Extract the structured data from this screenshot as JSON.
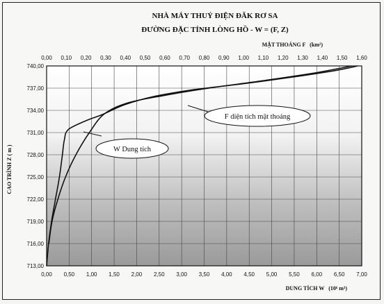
{
  "header": {
    "title": "NHÀ MÁY THUỶ ĐIỆN ĐĂK RƠ SA",
    "subtitle": "ĐƯỜNG ĐẶC TÍNH LÒNG HỒ - W = (F, Z)"
  },
  "chart_data": {
    "type": "line",
    "title": "NHÀ MÁY THUỶ ĐIỆN ĐĂK RƠ SA",
    "subtitle": "ĐƯỜNG ĐẶC TÍNH LÒNG HỒ - W = (F, Z)",
    "ylabel": "CAO TRÌNH Z ( m )",
    "x_bottom": {
      "label": "DUNG TÍCH W",
      "unit": "(10⁶ m³)",
      "range": [
        0,
        7
      ],
      "ticks": [
        "0,00",
        "0,50",
        "1,00",
        "1,50",
        "2,00",
        "2,50",
        "3,00",
        "3,50",
        "4,00",
        "4,50",
        "5,00",
        "5,50",
        "6,00",
        "6,50",
        "7,00"
      ]
    },
    "x_top": {
      "label": "MẶT THOÁNG F",
      "unit": "(km²)",
      "range": [
        0,
        1.6
      ],
      "ticks": [
        "0,00",
        "0,10",
        "0,20",
        "0,30",
        "0,40",
        "0,50",
        "0,60",
        "0,70",
        "0,80",
        "0,90",
        "1,00",
        "1,10",
        "1,20",
        "1,30",
        "1,40",
        "1,50",
        "1,60"
      ]
    },
    "y": {
      "range": [
        713,
        740
      ],
      "ticks": [
        "713,00",
        "716,00",
        "719,00",
        "722,00",
        "725,00",
        "728,00",
        "731,00",
        "734,00",
        "737,00",
        "740,00"
      ]
    },
    "grid": true,
    "series": [
      {
        "name": "W Dung tích",
        "axis": "bottom",
        "points": [
          [
            0.05,
            716
          ],
          [
            0.12,
            719
          ],
          [
            0.25,
            722
          ],
          [
            0.42,
            725
          ],
          [
            0.65,
            728
          ],
          [
            0.95,
            731
          ],
          [
            1.28,
            733.5
          ],
          [
            1.8,
            735
          ],
          [
            2.6,
            736
          ],
          [
            3.6,
            737
          ],
          [
            4.8,
            738
          ],
          [
            5.9,
            739
          ],
          [
            6.78,
            740
          ]
        ]
      },
      {
        "name": "F diện tích mặt thoáng",
        "axis": "top",
        "points": [
          [
            0.0,
            713
          ],
          [
            0.01,
            716
          ],
          [
            0.025,
            719
          ],
          [
            0.045,
            722
          ],
          [
            0.065,
            725
          ],
          [
            0.08,
            728
          ],
          [
            0.09,
            730
          ],
          [
            0.11,
            731.4
          ],
          [
            0.2,
            732.6
          ],
          [
            0.28,
            733.4
          ],
          [
            0.4,
            734.8
          ],
          [
            0.55,
            735.9
          ],
          [
            0.75,
            736.8
          ],
          [
            1.0,
            737.6
          ],
          [
            1.25,
            738.5
          ],
          [
            1.47,
            739.4
          ],
          [
            1.58,
            740
          ]
        ]
      }
    ],
    "annotations": [
      "W Dung tích",
      "F diện tích mặt thoáng"
    ]
  }
}
